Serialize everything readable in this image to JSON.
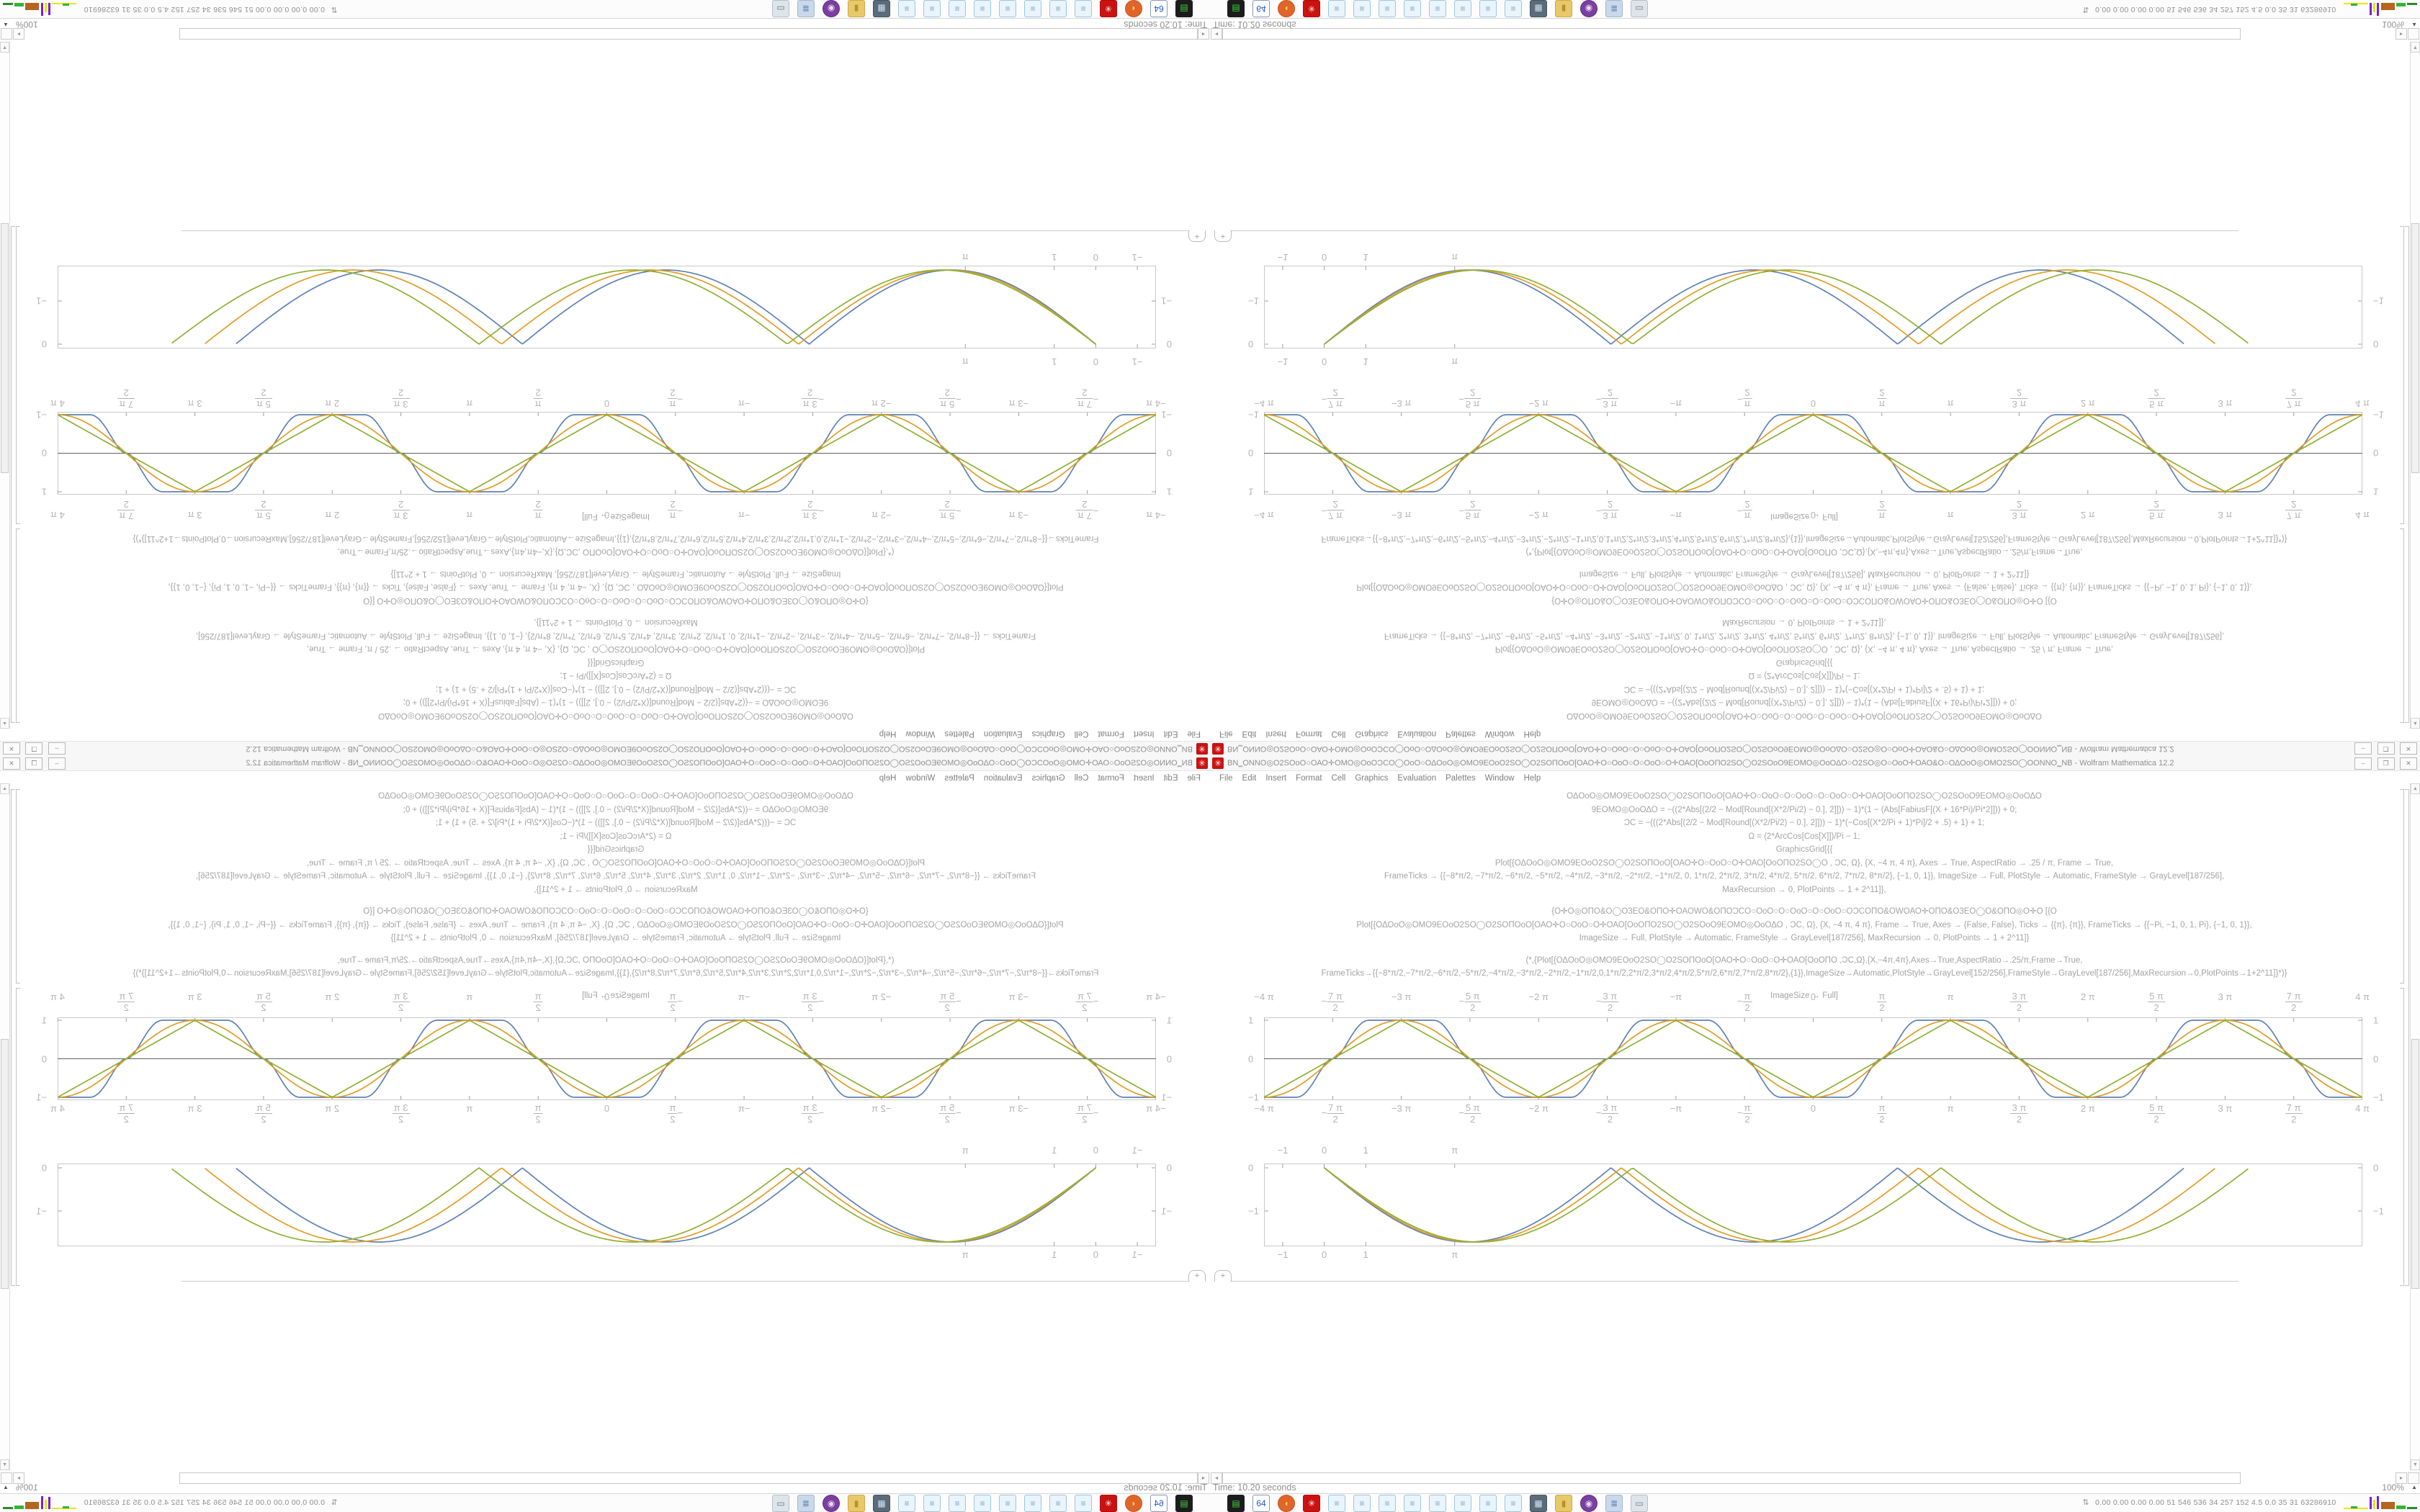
{
  "window": {
    "title_garbled": "ΒΝ‗ΟΝΝΟ◎Ο2SΟοΟ○ΟΑΟ✛ΟΜΟ◎ΟοΟƆϹΟ◯ΟοΟ○ΟΔΟοΟ◎ΟΜΟ9ΕΟοΟ2SΟ◯Ο2SΟΠΟοΟ[ΟΑΟ✛Ο○ΟοΟ○Ο○ΟοΟ○Ο✛ΟΑΟ[ΟοΟΠΟ2SΟ◯Ο2SΟοΟ9ΕΟΜΟ◎ΟοΟΔΟ○Ο2SΟ◎Ο○ΟοΟ✛ΟΑΟ&Ο○ΟΔΟοΟ◎ΟΜΟ2SΟ◯ΟΟΝΝΟ‗ΝΒ",
    "title_suffix": " - Wolfram Mathematica 12.2",
    "buttons": {
      "minimize": "–",
      "maximize": "❐",
      "close": "✕"
    },
    "app_icon_glyph": "✳"
  },
  "menu": {
    "items": [
      "File",
      "Edit",
      "Insert",
      "Format",
      "Cell",
      "Graphics",
      "Evaluation",
      "Palettes",
      "Window",
      "Help"
    ]
  },
  "notebook": {
    "code_lines": [
      {
        "text": "ΟΔΟοΟ◎ΟΜΟ9ΕΟοΟ2SΟ◯Ο2SΟΠΟοΟ[ΟΑΟ✛Ο○ΟοΟ○Ο○ΟοΟ○Ο○ΟοΟ○Ο✛ΟΑΟ[ΟοΟΠΟ2SΟ◯Ο2SΟοΟ9ΕΟΜΟ◎ΟοΟΔΟ",
        "gap": false
      },
      {
        "text": "9ΕΟΜΟ◎ΟοΟΔΟ = −((2*Abs[(2/2 − Mod[Round[(X*2/Pi/2) − 0.], 2]])) − 1)*(1 − (Abs[FabiusF[(X + 16*Pi)/Pi*2]])) + 0;",
        "gap": false
      },
      {
        "text": "ƆϹ = −(((2*Abs[(2/2 − Mod[Round[(X*2/Pi/2) − 0.], 2]])) − 1)*(−Cos[(X*2/Pi + 1)*Pi]/2 + .5) + 1) + 1;",
        "gap": false
      },
      {
        "text": "Ω = (2*ArcCos[Cos[X]])/Pi − 1;",
        "gap": false
      },
      {
        "text": "GraphicsGrid[{{",
        "gap": false
      },
      {
        "text": "Plot[{ΟΔΟοΟ◎ΟΜΟ9ΕΟοΟ2SΟ◯Ο2SΟΠΟοΟ[ΟΑΟ✛Ο○ΟοΟ○Ο✛ΟΑΟ[ΟοΟΠΟ2SΟ◯Ο , ƆϹ, Ω}, {X, −4 π, 4 π}, Axes → True, AspectRatio → .25 / π, Frame → True,",
        "gap": false
      },
      {
        "text": "FrameTicks → {{−8*π/2, −7*π/2, −6*π/2, −5*π/2, −4*π/2, −3*π/2, −2*π/2, −1*π/2, 0, 1*π/2, 2*π/2, 3*π/2, 4*π/2, 5*π/2, 6*π/2, 7*π/2, 8*π/2}, {−1, 0, 1}}, ImageSize → Full, PlotStyle → Automatic, FrameStyle → GrayLevel[187/256],",
        "gap": false
      },
      {
        "text": "MaxRecursion → 0, PlotPoints → 1 + 2^11]},",
        "gap": false
      },
      {
        "text": "{Ο✛Ο◎ΟΠΟ&Ο◯Ο3ΕΟ&ΟΠΟ✛ΟΑΟWΟ&ΟΠΟƆϹΟ○ΟοΟ○Ο○ΟοΟ○Ο○ΟοΟ○ΟƆϹΟΠΟ&ΟWΟΑΟ✛ΟΠΟ&Ο3ΕΟ◯Ο&ΟΠΟ◎Ο✛Ο   [{Ο",
        "gap": true
      },
      {
        "text": "Plot[{ΟΔΟοΟ◎ΟΜΟ9ΕΟοΟ2SΟ◯Ο2SΟΠΟοΟ[ΟΑΟ✛Ο○ΟοΟ○Ο✛ΟΑΟ[ΟοΟΠΟ2SΟ◯Ο2SΟοΟ9ΕΟΜΟ◎ΟοΟΔΟ , ƆϹ, Ω}, {X, −4 π, 4 π}, Frame → True, Axes → {False, False}, Ticks → {{π}, {π}}, FrameTicks → {{−Pi, −1, 0, 1, Pi}, {−1, 0, 1}},",
        "gap": false
      },
      {
        "text": "ImageSize → Full, PlotStyle → Automatic, FrameStyle → GrayLevel[187/256], MaxRecursion → 0, PlotPoints → 1 + 2^11]}",
        "gap": false
      },
      {
        "text": "(*,{Plot[{ΟΔΟοΟ◎ΟΜΟ9ΕΟοΟ2SΟ◯Ο2SΟΠΟοΟ[ΟΑΟ✛Ο○ΟοΟ○Ο✛ΟΑΟ[ΟοΟΠΟ ,ƆϹ,Ω},{X,−4π,4π},Axes→True,AspectRatio→.25/π,Frame→True,",
        "gap": true
      },
      {
        "text": "FrameTicks→{{−8*π/2,−7*π/2,−6*π/2,−5*π/2,−4*π/2,−3*π/2,−2*π/2,−1*π/2,0,1*π/2,2*π/2,3*π/2,4*π/2,5*π/2,6*π/2,7*π/2,8*π/2},{1}},ImageSize→Automatic,PlotStyle→GrayLevel[152/256],FrameStyle→GrayLevel[187/256],MaxRecursion→0,PlotPoints→1+2^11]}*)}",
        "gap": false
      },
      {
        "text": "ImageSize → Full]",
        "gap": true
      }
    ],
    "insertion_label": "+"
  },
  "statusbar": {
    "time": "Time: 10.20 seconds",
    "magnification": "100%",
    "magnification_arrow": "▲"
  },
  "scroll": {
    "up": "▲",
    "down": "▼",
    "left": "◂",
    "right": "▸"
  },
  "taskbar": {
    "icons": [
      {
        "name": "terminal-drive-icon",
        "bg": "#1c1c1c",
        "fg": "#3fd13f",
        "glyph": "▤",
        "shape": "square",
        "border": "#1c1c1c"
      },
      {
        "name": "floppy-64-icon",
        "bg": "#ffffff",
        "fg": "#2255cc",
        "glyph": "64",
        "shape": "square",
        "border": "#8899bb"
      },
      {
        "name": "firefox-icon",
        "bg": "#e0652a",
        "fg": "#f7d24b",
        "glyph": "◖",
        "shape": "circle",
        "border": "#c85520"
      },
      {
        "name": "mathematica-icon",
        "bg": "#cc1111",
        "fg": "#ffffff",
        "glyph": "✳",
        "shape": "square",
        "border": "#aa0e0e"
      },
      {
        "name": "notebook-icon",
        "bg": "#eaf4fb",
        "fg": "#7aa8c8",
        "glyph": "≡",
        "shape": "square",
        "border": "#9fc4dd"
      },
      {
        "name": "notebook-icon",
        "bg": "#eaf4fb",
        "fg": "#7aa8c8",
        "glyph": "≡",
        "shape": "square",
        "border": "#9fc4dd"
      },
      {
        "name": "notebook-icon",
        "bg": "#eaf4fb",
        "fg": "#7aa8c8",
        "glyph": "≡",
        "shape": "square",
        "border": "#9fc4dd"
      },
      {
        "name": "notebook-icon",
        "bg": "#eaf4fb",
        "fg": "#7aa8c8",
        "glyph": "≡",
        "shape": "square",
        "border": "#9fc4dd"
      },
      {
        "name": "notebook-icon",
        "bg": "#eaf4fb",
        "fg": "#7aa8c8",
        "glyph": "≡",
        "shape": "square",
        "border": "#9fc4dd"
      },
      {
        "name": "notebook-icon",
        "bg": "#eaf4fb",
        "fg": "#7aa8c8",
        "glyph": "≡",
        "shape": "square",
        "border": "#9fc4dd"
      },
      {
        "name": "notebook-icon",
        "bg": "#eaf4fb",
        "fg": "#7aa8c8",
        "glyph": "≡",
        "shape": "square",
        "border": "#9fc4dd"
      },
      {
        "name": "notebook-icon",
        "bg": "#eaf4fb",
        "fg": "#7aa8c8",
        "glyph": "≡",
        "shape": "square",
        "border": "#9fc4dd"
      },
      {
        "name": "display-settings-icon",
        "bg": "#5a6b7a",
        "fg": "#cfe0ee",
        "glyph": "▦",
        "shape": "square",
        "border": "#47545f"
      },
      {
        "name": "folder-icon",
        "bg": "#e8c96a",
        "fg": "#b98f2e",
        "glyph": "▮",
        "shape": "square",
        "border": "#cfa94a"
      },
      {
        "name": "owl-app-icon",
        "bg": "#7a3fa0",
        "fg": "#e8d8f0",
        "glyph": "◉",
        "shape": "circle",
        "border": "#613083"
      },
      {
        "name": "document-scroll-icon",
        "bg": "#c9d8ea",
        "fg": "#5577aa",
        "glyph": "≣",
        "shape": "square",
        "border": "#a4b8d0"
      },
      {
        "name": "window-small-icon",
        "bg": "#dde4ea",
        "fg": "#667788",
        "glyph": "▭",
        "shape": "square",
        "border": "#b6c0ca"
      }
    ],
    "monitor": {
      "arrow_glyph": "⇅",
      "text": "0.00 0.00 0.00 0.00  51  546 536  34  257 152  4.5  0.0  35  31 63286910",
      "bars": [
        {
          "x": 0,
          "y": 17,
          "w": 34,
          "h": 2,
          "c": "#e6e600"
        },
        {
          "x": 10,
          "y": 15,
          "w": 9,
          "h": 3,
          "c": "#35b535"
        },
        {
          "x": 36,
          "y": 2,
          "w": 3,
          "h": 17,
          "c": "#7a1fd1"
        },
        {
          "x": 41,
          "y": 6,
          "w": 3,
          "h": 13,
          "c": "#e6e600"
        },
        {
          "x": 46,
          "y": 1,
          "w": 3,
          "h": 18,
          "c": "#7a1fd1"
        },
        {
          "x": 52,
          "y": 9,
          "w": 19,
          "h": 10,
          "c": "#b5651d"
        },
        {
          "x": 73,
          "y": 14,
          "w": 13,
          "h": 5,
          "c": "#35b535"
        },
        {
          "x": 88,
          "y": 16,
          "w": 14,
          "h": 3,
          "c": "#2a8a2a"
        }
      ]
    }
  },
  "chart_data": [
    {
      "type": "line",
      "title": "",
      "xlabel": "",
      "ylabel": "",
      "xlim": [
        -12.566,
        12.566
      ],
      "ylim": [
        -1.075,
        1.075
      ],
      "frame": true,
      "axis_y0": true,
      "grid": false,
      "legend": "none",
      "x_ticks": [
        {
          "v": -8,
          "whole": "−4 π"
        },
        {
          "v": -7,
          "neg": true,
          "num": "7 π",
          "den": "2"
        },
        {
          "v": -6,
          "whole": "−3 π"
        },
        {
          "v": -5,
          "neg": true,
          "num": "5 π",
          "den": "2"
        },
        {
          "v": -4,
          "whole": "−2 π"
        },
        {
          "v": -3,
          "neg": true,
          "num": "3 π",
          "den": "2"
        },
        {
          "v": -2,
          "whole": "−π"
        },
        {
          "v": -1,
          "neg": true,
          "num": "π",
          "den": "2"
        },
        {
          "v": 0,
          "whole": "0"
        },
        {
          "v": 1,
          "neg": false,
          "num": "π",
          "den": "2"
        },
        {
          "v": 2,
          "whole": "π"
        },
        {
          "v": 3,
          "neg": false,
          "num": "3 π",
          "den": "2"
        },
        {
          "v": 4,
          "whole": "2 π"
        },
        {
          "v": 5,
          "neg": false,
          "num": "5 π",
          "den": "2"
        },
        {
          "v": 6,
          "whole": "3 π"
        },
        {
          "v": 7,
          "neg": false,
          "num": "7 π",
          "den": "2"
        },
        {
          "v": 8,
          "whole": "4 π"
        }
      ],
      "x_tick_unit": 1.5707963,
      "y_ticks": [
        {
          "v": 1,
          "l": "1"
        },
        {
          "v": 0,
          "l": "0"
        },
        {
          "v": -1,
          "l": "−1"
        }
      ],
      "series": [
        {
          "name": "fabius-smoothed-square",
          "kind": "fabius",
          "color": "#5e81b5",
          "desc": "−cos shaped with plateaus at −1, 0, 1 (FabiusF based), period 2π, valleys at 0, ±2π, ±4π"
        },
        {
          "name": "cosine-blend",
          "kind": "cos",
          "color": "#e19c24",
          "desc": "−cos(x), period 2π"
        },
        {
          "name": "triangle-wave",
          "kind": "tri",
          "color": "#8fb032",
          "desc": "(2 ArcCos[Cos[x]])/π − 1, period 2π"
        }
      ]
    },
    {
      "type": "line",
      "title": "",
      "xlabel": "",
      "ylabel": "",
      "xlim": [
        -1.45,
        25.0
      ],
      "ylim": [
        -1.82,
        0.1
      ],
      "frame": true,
      "axis_y0": false,
      "grid": false,
      "legend": "none",
      "x_ticks": [
        {
          "v": -1,
          "whole": "−1"
        },
        {
          "v": 0,
          "whole": "0"
        },
        {
          "v": 1,
          "whole": "1"
        },
        {
          "v": 3.14159,
          "whole": "π"
        }
      ],
      "x_tick_unit": 1,
      "y_ticks": [
        {
          "v": 0,
          "l": "0"
        },
        {
          "v": -1,
          "l": "−1"
        }
      ],
      "series": [
        {
          "name": "dip-wave-1",
          "kind": "absdip",
          "k": 0.455,
          "amp": -1.72,
          "x0": 0,
          "color": "#5e81b5",
          "desc": "−1.72·|sin(0.455 x)| from x=0, three dips, ends at third zero"
        },
        {
          "name": "dip-wave-2",
          "kind": "absdip",
          "k": 0.439,
          "amp": -1.72,
          "x0": 0,
          "color": "#e19c24",
          "desc": "phase-stretched copy"
        },
        {
          "name": "dip-wave-3",
          "kind": "absdip",
          "k": 0.423,
          "amp": -1.72,
          "x0": 0,
          "color": "#8fb032",
          "desc": "phase-stretched copy"
        }
      ]
    }
  ],
  "colors": {
    "curve_blue": "#5e81b5",
    "curve_orange": "#e19c24",
    "curve_green": "#8fb032",
    "frame_grey": "#c9c9c9",
    "label_grey": "#b4b4b4",
    "code_grey": "#a3a3a3",
    "mathematica_red": "#cc1111",
    "axis_dark": "#606060"
  }
}
